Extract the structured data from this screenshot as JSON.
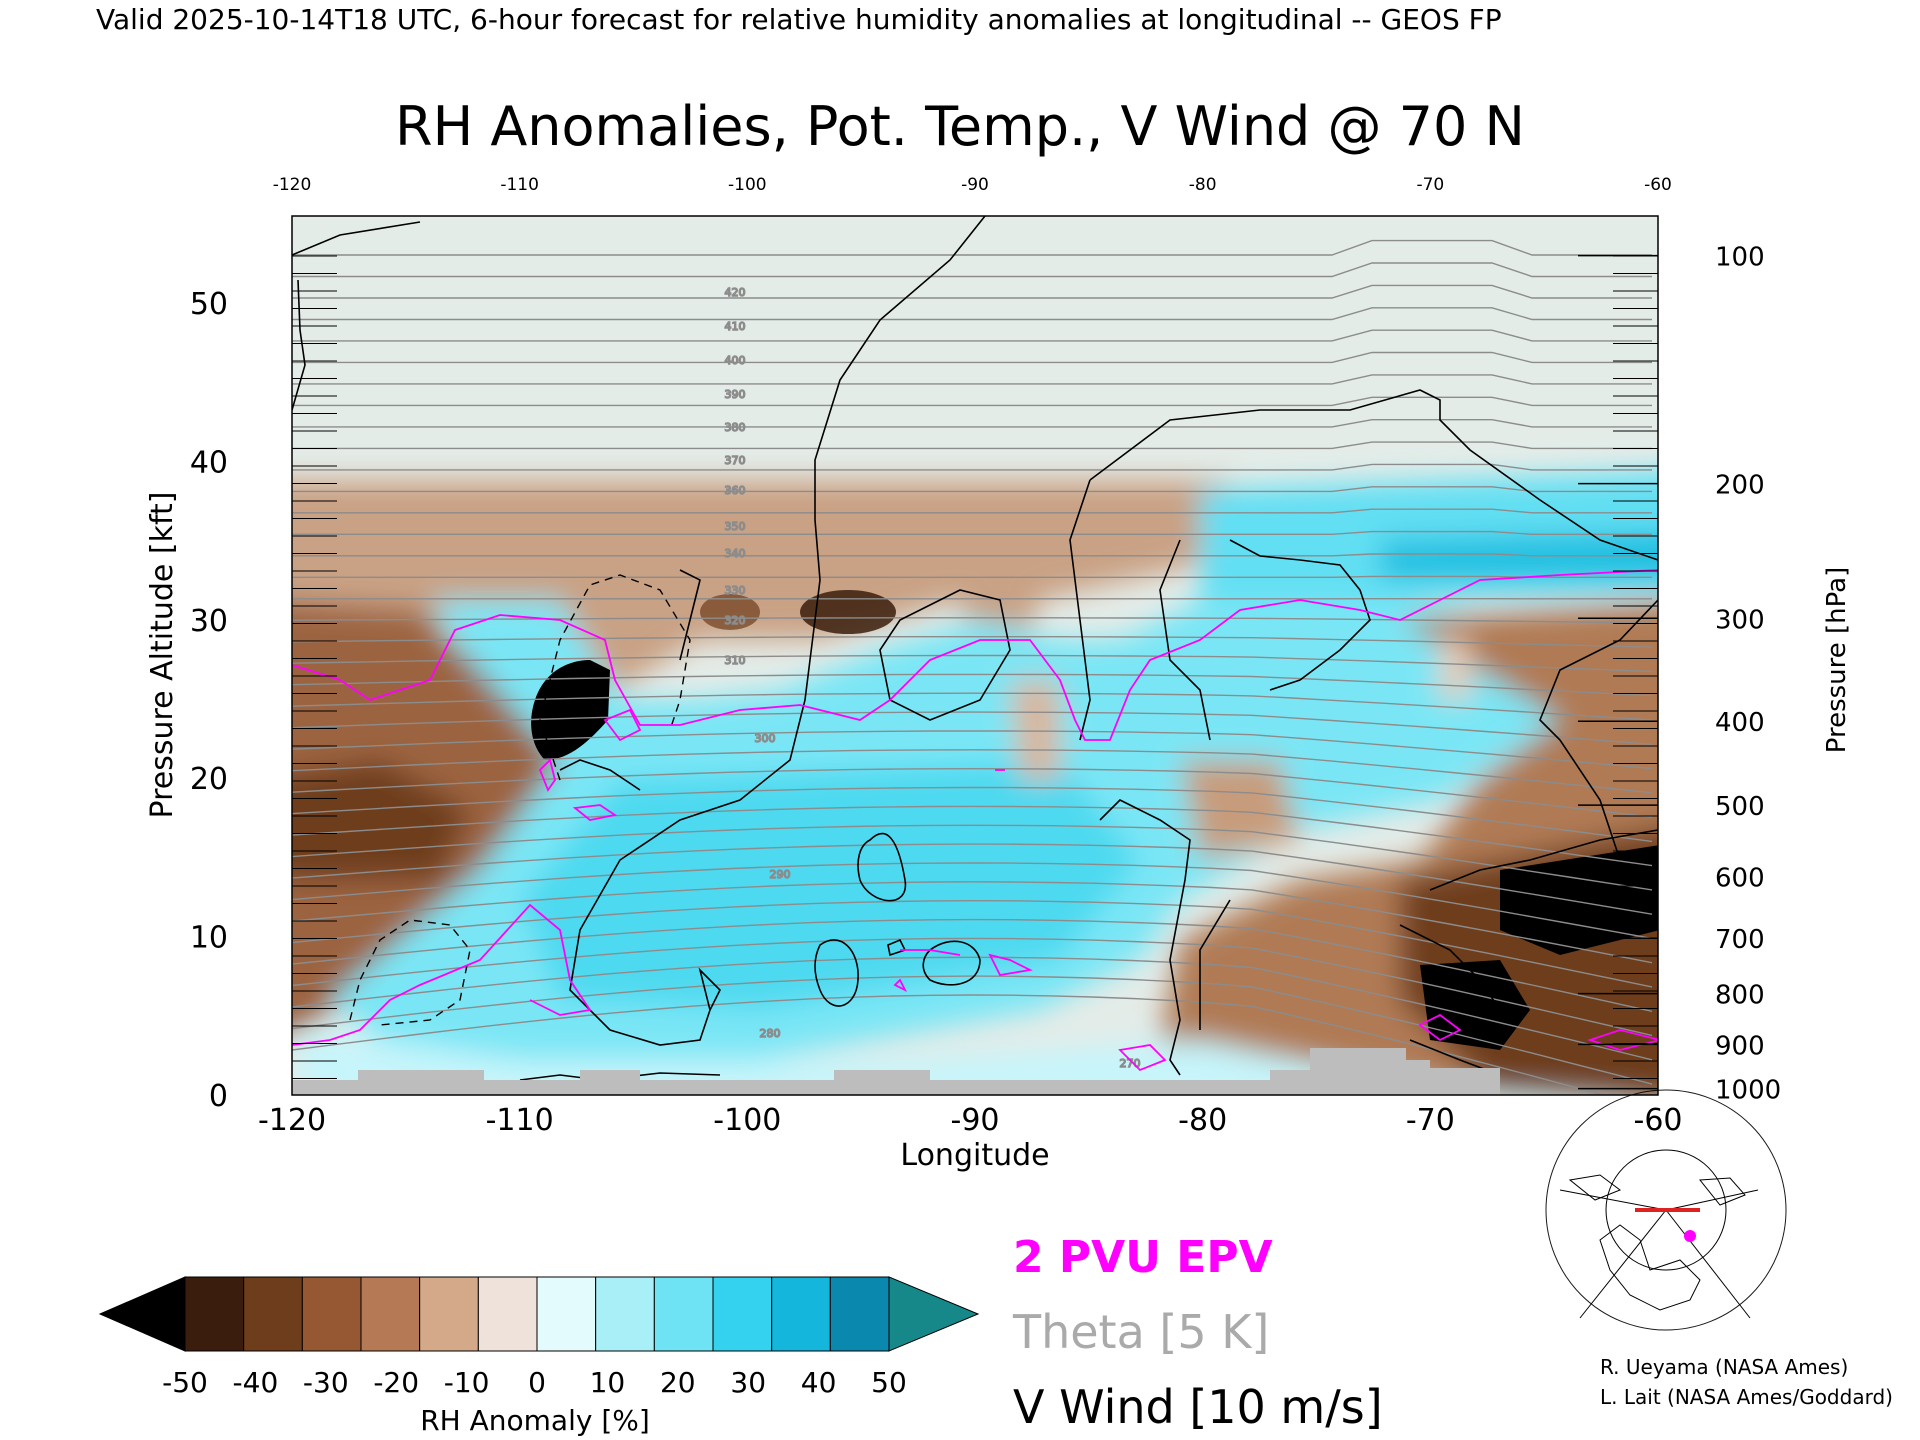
{
  "header": {
    "valid_line": "Valid 2025-10-14T18 UTC, 6-hour forecast for relative humidity anomalies at longitudinal -- GEOS FP"
  },
  "chart_data": {
    "type": "heatmap",
    "title": "RH Anomalies, Pot. Temp., V Wind @ 70 N",
    "xlabel": "Longitude",
    "ylabel_left": "Pressure Altitude [kft]",
    "ylabel_right": "Pressure [hPa]",
    "xlim": [
      -120,
      -60
    ],
    "ylim": [
      0,
      55.5
    ],
    "x_ticks": [
      "-120",
      "-110",
      "-100",
      "-90",
      "-80",
      "-70",
      "-60"
    ],
    "x_tick_values": [
      -120,
      -110,
      -100,
      -90,
      -80,
      -70,
      -60
    ],
    "top_ticks": [
      "-120",
      "-110",
      "-100",
      "-90",
      "-80",
      "-70",
      "-60"
    ],
    "y_ticks": [
      "0",
      "10",
      "20",
      "30",
      "40",
      "50"
    ],
    "y_tick_values": [
      0,
      10,
      20,
      30,
      40,
      50
    ],
    "right_ticks": [
      {
        "label": "100",
        "kft": 53.0
      },
      {
        "label": "200",
        "kft": 38.6
      },
      {
        "label": "300",
        "kft": 30.1
      },
      {
        "label": "400",
        "kft": 23.6
      },
      {
        "label": "500",
        "kft": 18.3
      },
      {
        "label": "600",
        "kft": 13.8
      },
      {
        "label": "700",
        "kft": 9.9
      },
      {
        "label": "800",
        "kft": 6.4
      },
      {
        "label": "900",
        "kft": 3.2
      },
      {
        "label": "1000",
        "kft": 0.4
      }
    ],
    "theta_labels": [
      "420",
      "410",
      "400",
      "390",
      "380",
      "370",
      "360",
      "350",
      "340",
      "330",
      "320",
      "310",
      "300",
      "290",
      "280",
      "270"
    ],
    "colorbar": {
      "label": "RH Anomaly [%]",
      "tick_labels": [
        "-50",
        "-40",
        "-30",
        "-20",
        "-10",
        "0",
        "10",
        "20",
        "30",
        "40",
        "50"
      ],
      "colors": [
        "#000000",
        "#3a1d0c",
        "#6e3d1c",
        "#955833",
        "#b57a55",
        "#d3a98a",
        "#efe2da",
        "#e3fbfd",
        "#a9eff7",
        "#6de3f3",
        "#35d2ef",
        "#15b6dc",
        "#0a88ad",
        "#17888a"
      ]
    },
    "legend": [
      {
        "label": "2 PVU EPV",
        "color": "#ff00ff"
      },
      {
        "label": "Theta [5 K]",
        "color": "#aaaaaa"
      },
      {
        "label": "V Wind [10 m/s]",
        "color": "#000000"
      }
    ],
    "grid": false
  },
  "credits": {
    "line1": "R. Ueyama (NASA Ames)",
    "line2": "L. Lait (NASA Ames/Goddard)"
  },
  "colors": {
    "epv": "#ff00ff",
    "theta": "#9a9a9a",
    "terrain": "#bdbdbd"
  }
}
